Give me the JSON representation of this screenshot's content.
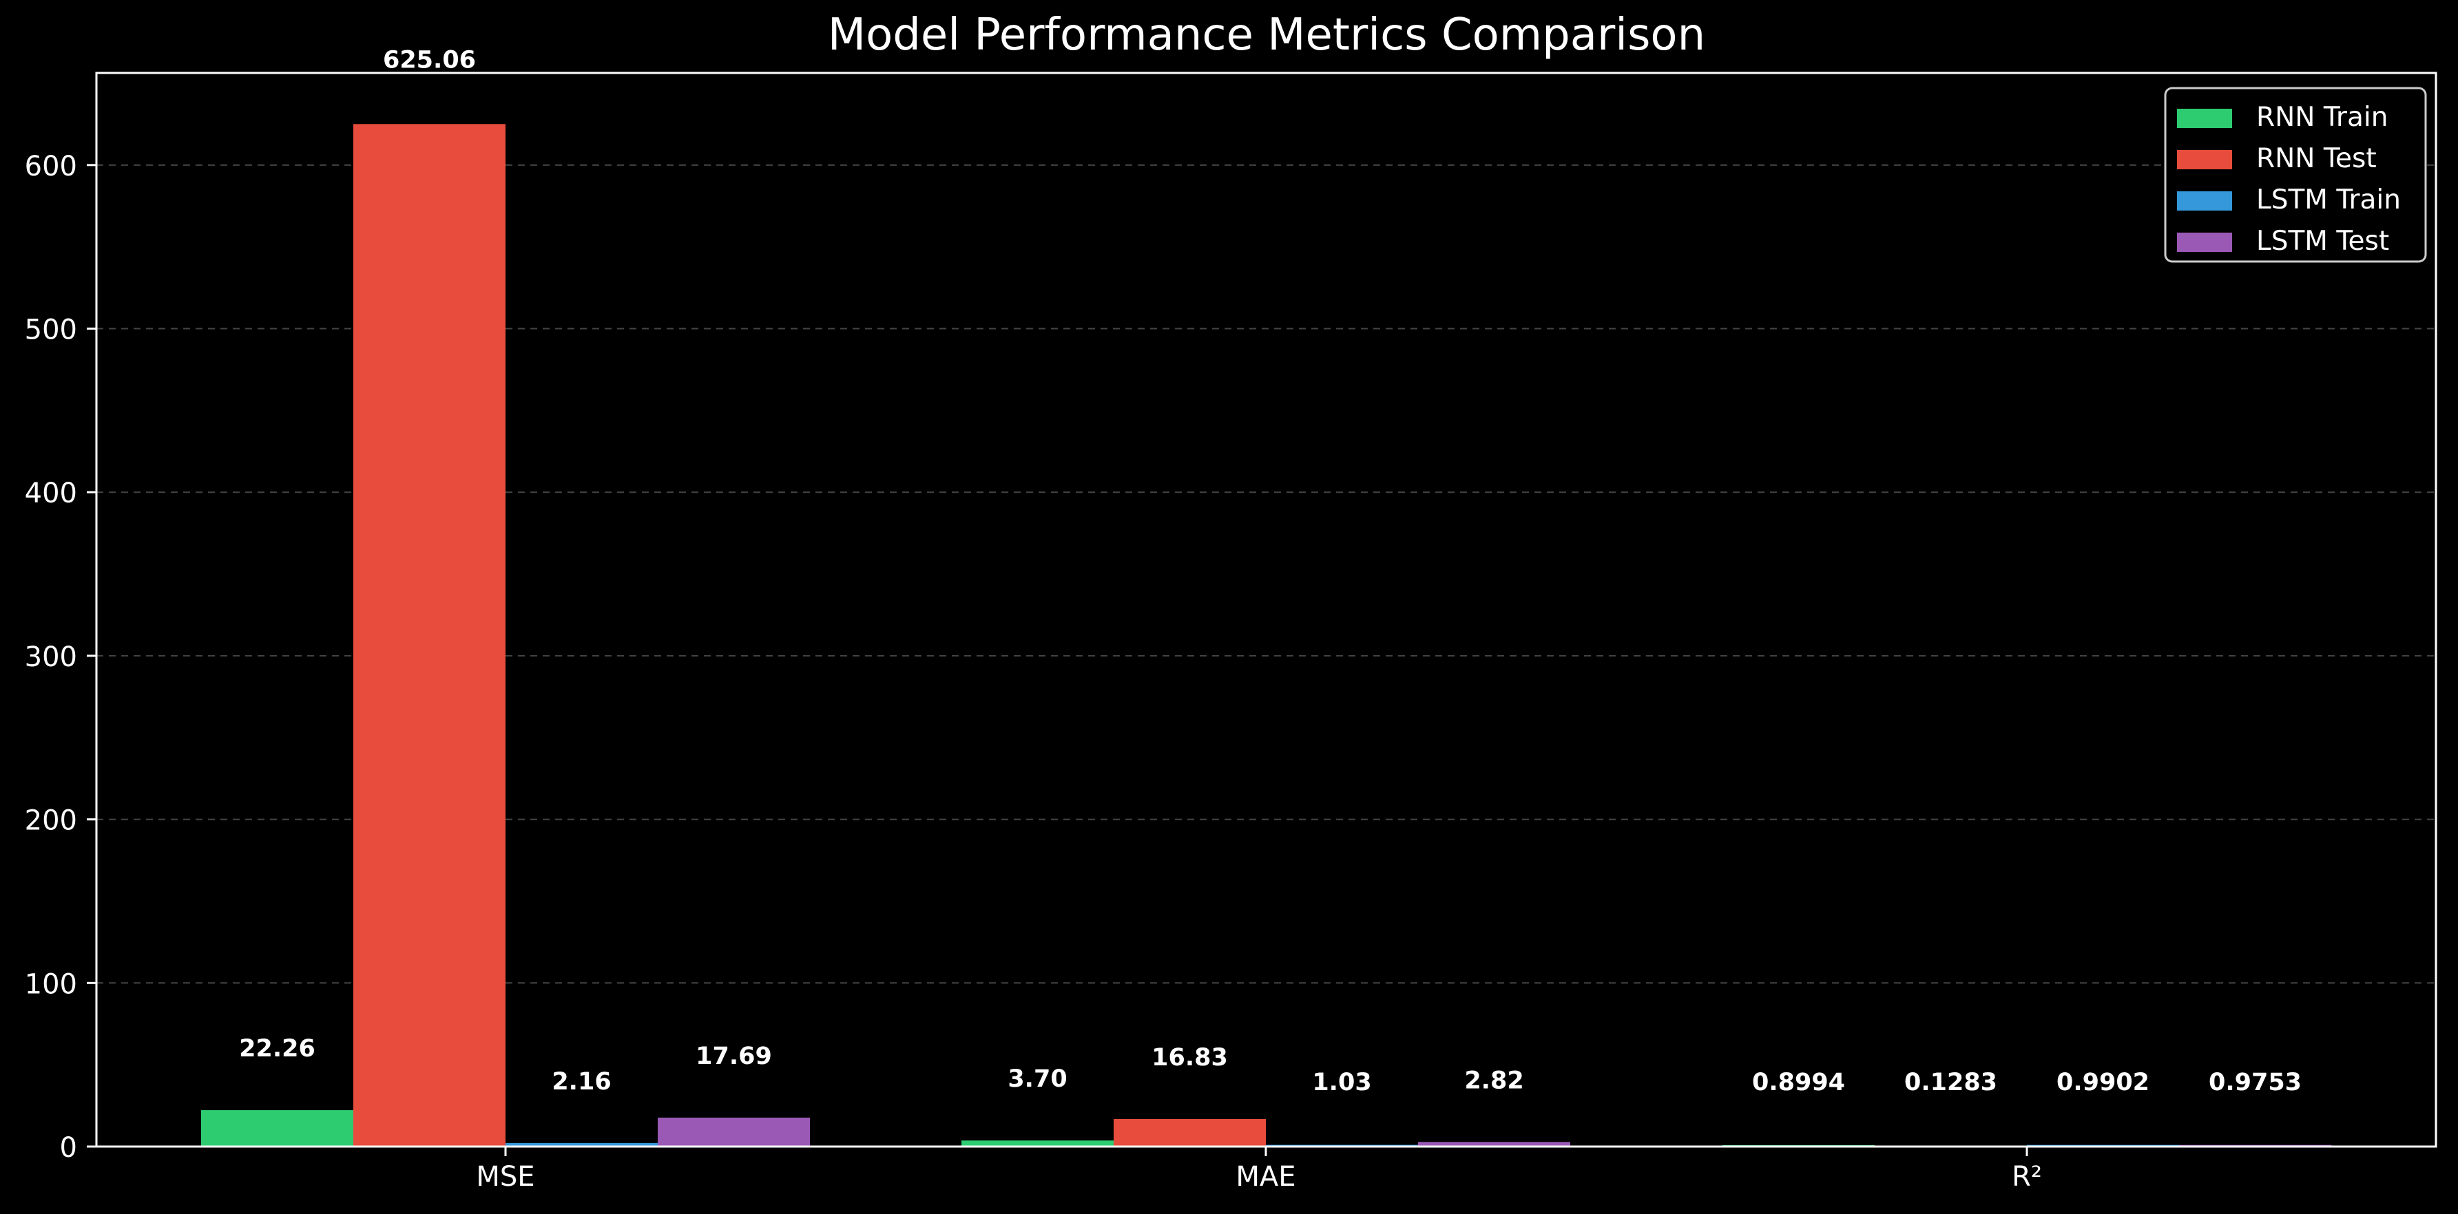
{
  "chart_data": {
    "type": "bar",
    "title": "Model Performance Metrics Comparison",
    "xlabel": "",
    "ylabel": "",
    "categories": [
      "MSE",
      "MAE",
      "R²"
    ],
    "series": [
      {
        "name": "RNN Train",
        "color": "#2ecc71",
        "values": [
          22.26,
          3.7,
          0.8994
        ],
        "labels": [
          "22.26",
          "3.70",
          "0.8994"
        ]
      },
      {
        "name": "RNN Test",
        "color": "#e74c3c",
        "values": [
          625.06,
          16.83,
          0.1283
        ],
        "labels": [
          "625.06",
          "16.83",
          "0.1283"
        ]
      },
      {
        "name": "LSTM Train",
        "color": "#3498db",
        "values": [
          2.16,
          1.03,
          0.9902
        ],
        "labels": [
          "2.16",
          "1.03",
          "0.9902"
        ]
      },
      {
        "name": "LSTM Test",
        "color": "#9b59b6",
        "values": [
          17.69,
          2.82,
          0.9753
        ],
        "labels": [
          "17.69",
          "2.82",
          "0.9753"
        ]
      }
    ],
    "yticks": [
      0,
      100,
      200,
      300,
      400,
      500,
      600
    ],
    "ylim": [
      0,
      656.3
    ],
    "grid": true,
    "legend_position": "top-right",
    "background_color": "#000000",
    "text_color": "#ffffff",
    "grid_color": "#444444"
  }
}
